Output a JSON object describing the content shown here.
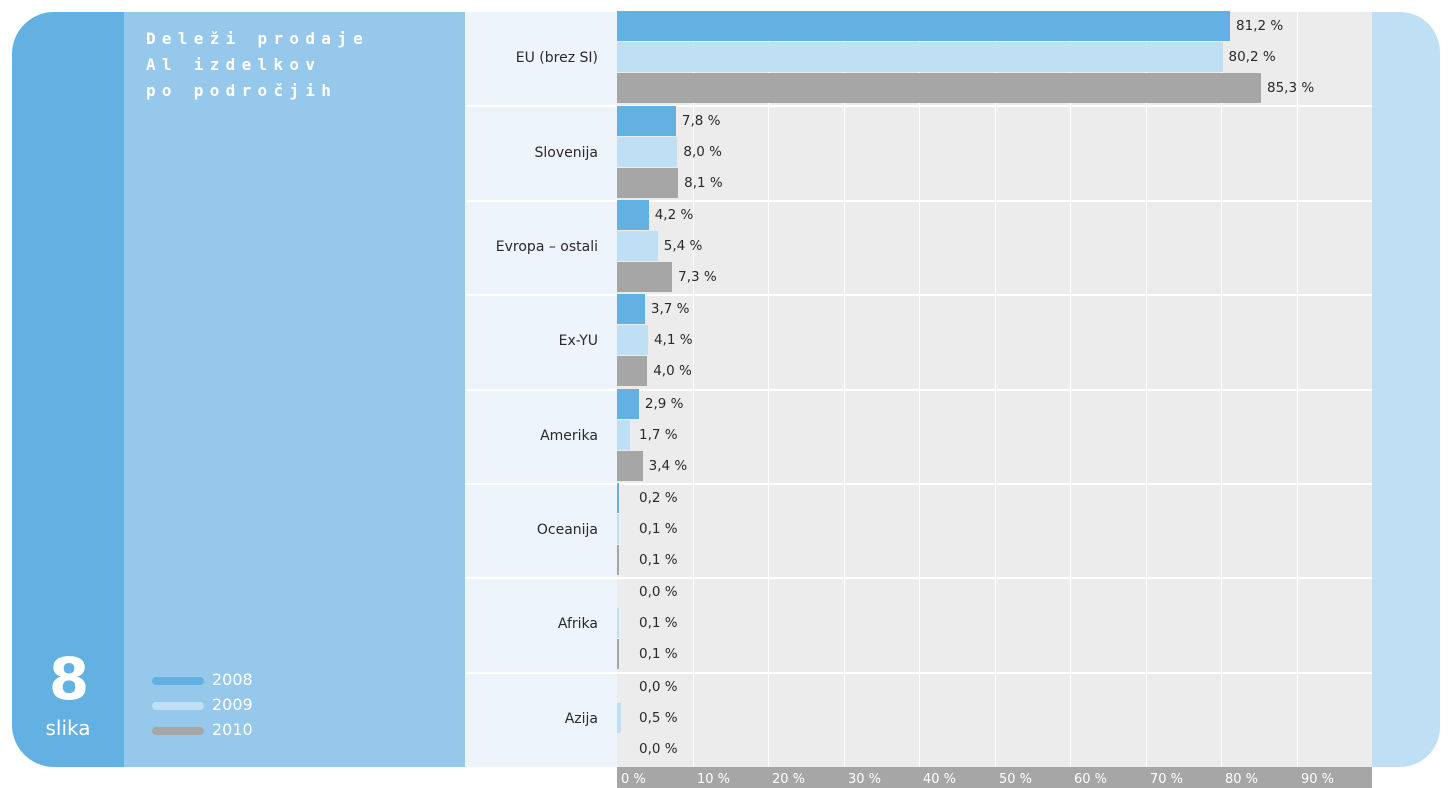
{
  "figure": {
    "number": "8",
    "word": "slika",
    "title": "Deleži prodaje\nAl izdelkov\npo področjih"
  },
  "colors": {
    "2008": "#62b1e2",
    "2009": "#bfdff4",
    "2010": "#a6a6a6"
  },
  "chart_data": {
    "type": "bar",
    "orientation": "horizontal",
    "title": "Deleži prodaje\nAl izdelkov\npo področjih",
    "xlim": [
      0,
      100
    ],
    "grid": true,
    "legend_position": "bottom-left",
    "categories": [
      "EU (brez SI)",
      "Slovenija",
      "Evropa – ostali",
      "Ex-YU",
      "Amerika",
      "Oceanija",
      "Afrika",
      "Azija"
    ],
    "series": [
      {
        "name": "2008",
        "values": [
          81.2,
          7.8,
          4.2,
          3.7,
          2.9,
          0.2,
          0.0,
          0.0
        ]
      },
      {
        "name": "2009",
        "values": [
          80.2,
          8.0,
          5.4,
          4.1,
          1.7,
          0.1,
          0.1,
          0.5
        ]
      },
      {
        "name": "2010",
        "values": [
          85.3,
          8.1,
          7.3,
          4.0,
          3.4,
          0.1,
          0.1,
          0.0
        ]
      }
    ],
    "value_labels": [
      [
        "81,2 %",
        "80,2 %",
        "85,3 %"
      ],
      [
        "7,8 %",
        "8,0 %",
        "8,1 %"
      ],
      [
        "4,2 %",
        "5,4 %",
        "7,3 %"
      ],
      [
        "3,7 %",
        "4,1 %",
        "4,0 %"
      ],
      [
        "2,9 %",
        "1,7 %",
        "3,4 %"
      ],
      [
        "0,2 %",
        "0,1 %",
        "0,1 %"
      ],
      [
        "0,0 %",
        "0,1 %",
        "0,1 %"
      ],
      [
        "0,0 %",
        "0,5 %",
        "0,0 %"
      ]
    ],
    "x_ticks": [
      "0 %",
      "10 %",
      "20 %",
      "30 %",
      "40 %",
      "50 %",
      "60 %",
      "70 %",
      "80 %",
      "90 %"
    ]
  }
}
